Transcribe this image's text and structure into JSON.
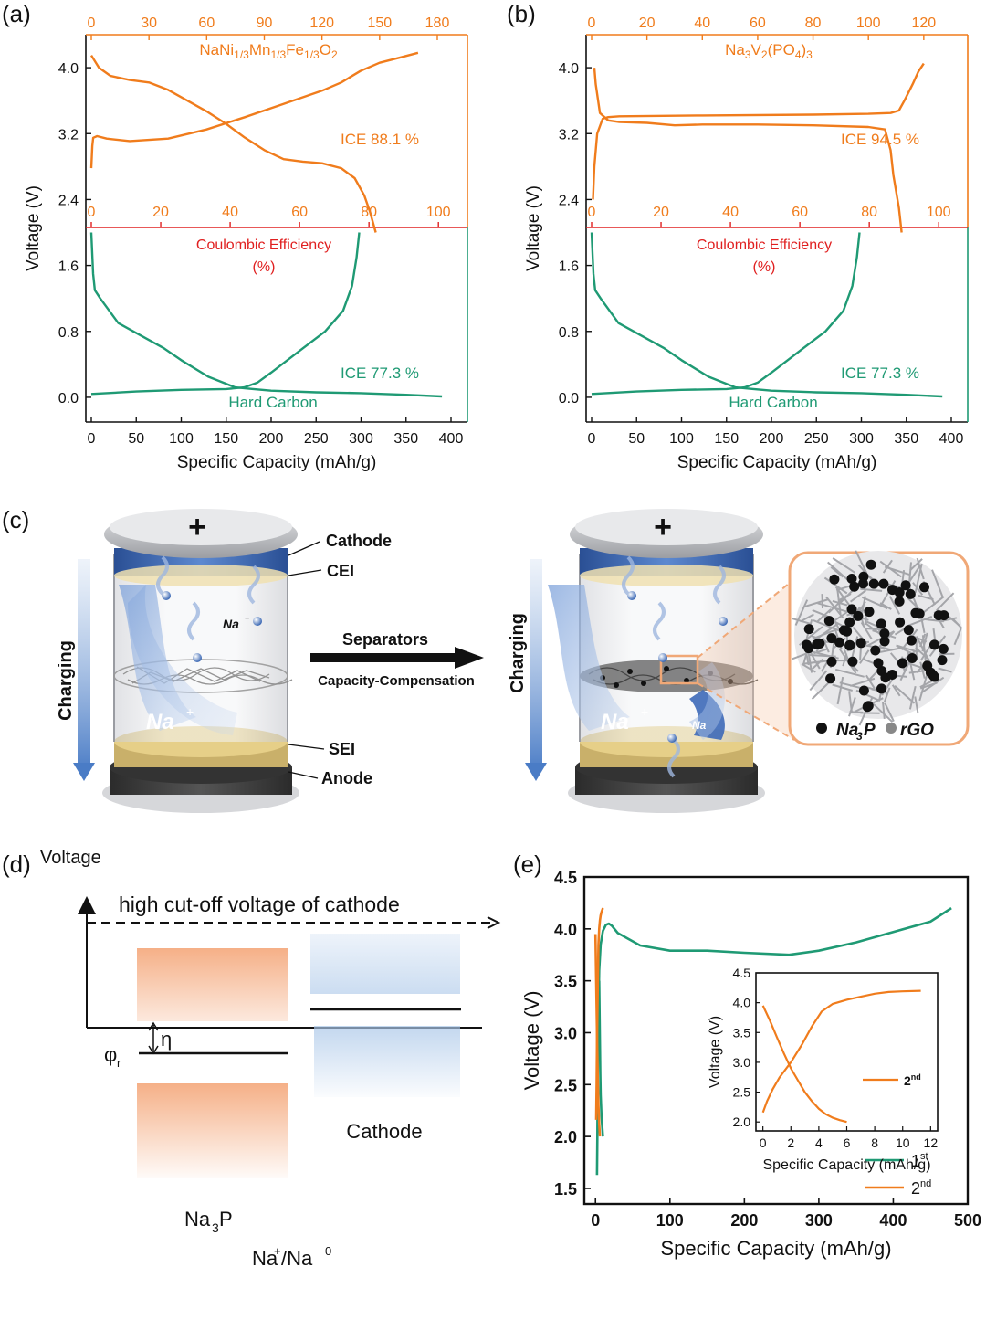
{
  "panel_labels": {
    "a": "(a)",
    "b": "(b)",
    "c": "(c)",
    "d": "(d)",
    "e": "(e)"
  },
  "colors": {
    "orange": "#f07c1c",
    "green": "#1f9a74",
    "red": "#e02020",
    "black": "#111111",
    "blue": "#3d69b8"
  },
  "chart_data": [
    {
      "id": "a",
      "type": "line",
      "ylabel": "Voltage (V)",
      "xlabel": "Specific Capacity (mAh/g)",
      "bottom_xlim": [
        0,
        400
      ],
      "bottom_xticks": [
        "0",
        "50",
        "100",
        "150",
        "200",
        "250",
        "300",
        "350",
        "400"
      ],
      "top_xlim": [
        0,
        180
      ],
      "top_xticks": [
        "0",
        "30",
        "60",
        "90",
        "120",
        "150",
        "180"
      ],
      "mid_axis_label": "Coulombic Efficiency",
      "mid_axis_unit": "(%)",
      "mid_xticks": [
        "0",
        "20",
        "40",
        "60",
        "80",
        "100"
      ],
      "ylim": [
        -0.3,
        4.4
      ],
      "yticks": [
        "0.0",
        "0.8",
        "1.6",
        "2.4",
        "3.2",
        "4.0"
      ],
      "cathode_label": "NaNi",
      "cathode_sub1": "1/3",
      "cathode_mn": "Mn",
      "cathode_sub2": "1/3",
      "cathode_fe": "Fe",
      "cathode_sub3": "1/3",
      "cathode_o": "O",
      "cathode_sub4": "2",
      "cathode_ice": "ICE 88.1 %",
      "anode_ice": "ICE 77.3 %",
      "anode_label": "Hard Carbon",
      "series": [
        {
          "name": "cathode charge",
          "axis": "top",
          "x": [
            0,
            0.5,
            1,
            3,
            8,
            20,
            40,
            60,
            80,
            100,
            120,
            130,
            140,
            150,
            160,
            170
          ],
          "y": [
            2.78,
            3.05,
            3.15,
            3.17,
            3.14,
            3.11,
            3.14,
            3.25,
            3.4,
            3.56,
            3.72,
            3.82,
            3.96,
            4.06,
            4.12,
            4.18
          ]
        },
        {
          "name": "cathode discharge",
          "axis": "top",
          "x": [
            0,
            4,
            10,
            20,
            30,
            40,
            50,
            60,
            70,
            80,
            90,
            100,
            110,
            120,
            130,
            137,
            142,
            145,
            148
          ],
          "y": [
            4.15,
            4.0,
            3.9,
            3.85,
            3.82,
            3.73,
            3.6,
            3.47,
            3.32,
            3.15,
            3.0,
            2.89,
            2.86,
            2.84,
            2.78,
            2.66,
            2.45,
            2.25,
            2.0
          ]
        },
        {
          "name": "anode discharge",
          "axis": "bottom",
          "x": [
            0,
            2,
            4,
            10,
            20,
            30,
            50,
            80,
            100,
            130,
            160,
            180,
            200,
            250,
            300,
            350,
            390
          ],
          "y": [
            2.0,
            1.5,
            1.3,
            1.2,
            1.05,
            0.9,
            0.78,
            0.6,
            0.45,
            0.25,
            0.12,
            0.1,
            0.08,
            0.06,
            0.05,
            0.03,
            0.01
          ]
        },
        {
          "name": "anode charge",
          "axis": "bottom",
          "x": [
            0,
            50,
            100,
            150,
            170,
            185,
            200,
            230,
            260,
            280,
            290,
            295,
            298
          ],
          "y": [
            0.04,
            0.07,
            0.09,
            0.1,
            0.12,
            0.18,
            0.3,
            0.55,
            0.8,
            1.05,
            1.35,
            1.7,
            2.0
          ]
        }
      ]
    },
    {
      "id": "b",
      "type": "line",
      "ylabel": "Voltage (V)",
      "xlabel": "Specific Capacity (mAh/g)",
      "bottom_xlim": [
        0,
        400
      ],
      "bottom_xticks": [
        "0",
        "50",
        "100",
        "150",
        "200",
        "250",
        "300",
        "350",
        "400"
      ],
      "top_xlim": [
        0,
        125
      ],
      "top_xticks": [
        "0",
        "20",
        "40",
        "60",
        "80",
        "100",
        "120"
      ],
      "mid_axis_label": "Coulombic Efficiency",
      "mid_axis_unit": "(%)",
      "mid_xticks": [
        "0",
        "20",
        "40",
        "60",
        "80",
        "100"
      ],
      "ylim": [
        -0.3,
        4.4
      ],
      "yticks": [
        "0.0",
        "0.8",
        "1.6",
        "2.4",
        "3.2",
        "4.0"
      ],
      "cathode_label": "Na",
      "cathode_sub1": "3",
      "cathode_mn": "V",
      "cathode_sub2": "2",
      "cathode_fe": "(PO",
      "cathode_sub3": "4",
      "cathode_o": ")",
      "cathode_sub4": "3",
      "cathode_ice": "ICE 94.5 %",
      "anode_ice": "ICE 77.3 %",
      "anode_label": "Hard Carbon",
      "series": [
        {
          "name": "cathode charge",
          "axis": "top",
          "x": [
            0.5,
            1,
            2,
            4,
            6,
            10,
            40,
            80,
            100,
            108,
            111,
            113,
            116,
            118,
            120
          ],
          "y": [
            2.4,
            2.8,
            3.2,
            3.38,
            3.4,
            3.41,
            3.42,
            3.43,
            3.44,
            3.45,
            3.48,
            3.6,
            3.8,
            3.95,
            4.05
          ]
        },
        {
          "name": "cathode discharge",
          "axis": "top",
          "x": [
            1,
            1.5,
            3,
            6,
            10,
            20,
            30,
            40,
            60,
            80,
            100,
            106,
            108,
            109,
            111,
            112
          ],
          "y": [
            4.0,
            3.8,
            3.45,
            3.36,
            3.34,
            3.33,
            3.3,
            3.31,
            3.31,
            3.3,
            3.28,
            3.25,
            3.0,
            2.7,
            2.3,
            2.0
          ]
        },
        {
          "name": "anode discharge",
          "axis": "bottom",
          "x": [
            0,
            2,
            4,
            10,
            20,
            30,
            50,
            80,
            100,
            130,
            160,
            180,
            200,
            250,
            300,
            350,
            390
          ],
          "y": [
            2.0,
            1.5,
            1.3,
            1.2,
            1.05,
            0.9,
            0.78,
            0.6,
            0.45,
            0.25,
            0.12,
            0.1,
            0.08,
            0.06,
            0.05,
            0.03,
            0.01
          ]
        },
        {
          "name": "anode charge",
          "axis": "bottom",
          "x": [
            0,
            50,
            100,
            150,
            170,
            185,
            200,
            230,
            260,
            280,
            290,
            295,
            298
          ],
          "y": [
            0.04,
            0.07,
            0.09,
            0.1,
            0.12,
            0.18,
            0.3,
            0.55,
            0.8,
            1.05,
            1.35,
            1.7,
            2.0
          ]
        }
      ]
    },
    {
      "id": "e",
      "type": "line",
      "xlabel": "Specific Capacity (mAh/g)",
      "ylabel": "Voltage (V)",
      "xlim": [
        -15,
        500
      ],
      "xticks": [
        "0",
        "100",
        "200",
        "300",
        "400",
        "500"
      ],
      "ylim": [
        1.35,
        4.5
      ],
      "yticks": [
        "1.5",
        "2.0",
        "2.5",
        "3.0",
        "3.5",
        "4.0",
        "4.5"
      ],
      "legend": [
        {
          "name": "1",
          "sup": "st",
          "color": "#1f9a74"
        },
        {
          "name": "2",
          "sup": "nd",
          "color": "#f07c1c"
        }
      ],
      "series": [
        {
          "name": "1st",
          "color": "#1f9a74",
          "x": [
            2,
            2.5,
            3,
            4,
            5,
            7,
            10,
            14,
            18,
            22,
            30,
            60,
            100,
            150,
            200,
            260,
            300,
            350,
            400,
            450,
            478
          ],
          "y": [
            1.63,
            2.0,
            2.6,
            3.2,
            3.6,
            3.85,
            3.98,
            4.04,
            4.05,
            4.03,
            3.96,
            3.84,
            3.79,
            3.79,
            3.77,
            3.75,
            3.79,
            3.87,
            3.97,
            4.07,
            4.2
          ]
        },
        {
          "name": "1st discharge",
          "color": "#1f9a74",
          "x": [
            5,
            5.5,
            6,
            6.5,
            7,
            8,
            10
          ],
          "y": [
            3.5,
            3.2,
            2.9,
            2.6,
            2.4,
            2.2,
            2.0
          ]
        },
        {
          "name": "2nd",
          "color": "#f07c1c",
          "x": [
            1,
            1.5,
            2,
            3,
            4,
            5,
            6,
            7,
            8,
            10
          ],
          "y": [
            2.16,
            2.5,
            2.9,
            3.4,
            3.85,
            4.0,
            4.08,
            4.13,
            4.16,
            4.2
          ]
        },
        {
          "name": "2nd discharge",
          "color": "#f07c1c",
          "x": [
            0,
            1,
            2,
            3,
            4,
            5,
            6
          ],
          "y": [
            3.95,
            3.5,
            3.0,
            2.6,
            2.3,
            2.12,
            2.0
          ]
        }
      ],
      "inset": {
        "xlabel": "Specific Capacity (mAh/g)",
        "ylabel": "Voltage (V)",
        "xlim": [
          -0.5,
          12.5
        ],
        "xticks": [
          "0",
          "2",
          "4",
          "6",
          "8",
          "10",
          "12"
        ],
        "ylim": [
          1.85,
          4.5
        ],
        "yticks": [
          "2.0",
          "2.5",
          "3.0",
          "3.5",
          "4.0",
          "4.5"
        ],
        "legend": {
          "name": "2",
          "sup": "nd"
        },
        "series": [
          {
            "name": "2nd charge",
            "x": [
              0,
              0.3,
              0.7,
              1.2,
              2,
              2.8,
              3.5,
              4.2,
              5,
              6,
              7,
              8,
              9,
              10,
              11.3
            ],
            "y": [
              2.16,
              2.35,
              2.55,
              2.75,
              3.0,
              3.3,
              3.6,
              3.85,
              3.98,
              4.05,
              4.1,
              4.15,
              4.18,
              4.19,
              4.2
            ]
          },
          {
            "name": "2nd discharge",
            "x": [
              0,
              0.5,
              1,
              1.5,
              2,
              2.5,
              3,
              3.5,
              4,
              4.5,
              5,
              5.5,
              6
            ],
            "y": [
              3.95,
              3.7,
              3.42,
              3.15,
              2.9,
              2.7,
              2.5,
              2.35,
              2.22,
              2.13,
              2.07,
              2.03,
              2.0
            ]
          }
        ]
      }
    }
  ],
  "panel_c": {
    "labels": {
      "cathode": "Cathode",
      "cei": "CEI",
      "sei": "SEI",
      "anode": "Anode",
      "charging": "Charging",
      "separators": "Separators",
      "compensation": "Capacity-Compensation",
      "na_small": "Na",
      "na_large": "Na",
      "plus": "+",
      "na3p": "Na",
      "na3p_sub": "3",
      "na3p_p": "P",
      "rgo": "rGO",
      "legend_dot1": "●",
      "legend_dot2": "●"
    }
  },
  "panel_d": {
    "voltage": "Voltage",
    "cutoff": "high cut-off voltage of cathode",
    "eta": "η",
    "phi": "φ",
    "phi_sub": "r",
    "cathode": "Cathode",
    "na3p": "Na",
    "na3p_sub": "3",
    "na3p_p": "P",
    "xaxis": "Na",
    "xaxis_sup1": "+",
    "xaxis_mid": "/Na",
    "xaxis_sup2": "0"
  }
}
